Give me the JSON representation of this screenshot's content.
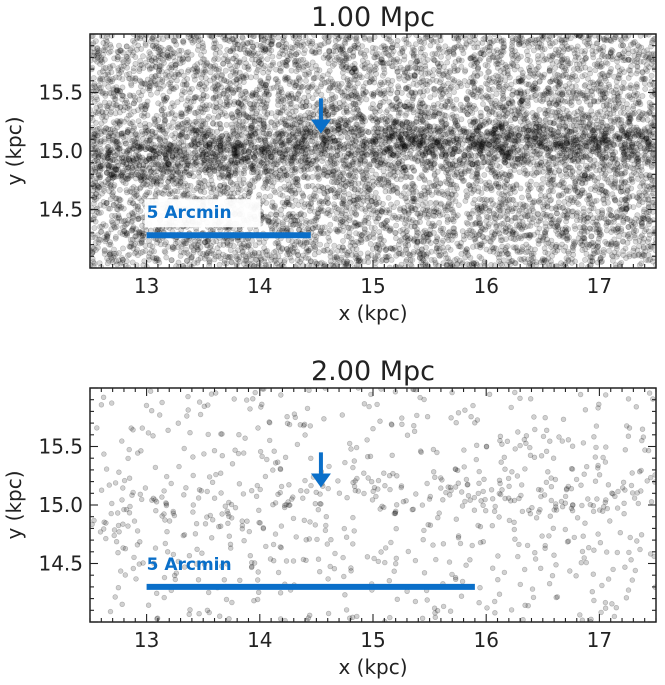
{
  "chart_data": [
    {
      "type": "scatter",
      "title": "1.00 Mpc",
      "xlabel": "x (kpc)",
      "ylabel": "y (kpc)",
      "xlim": [
        12.5,
        17.5
      ],
      "ylim": [
        14.0,
        16.0
      ],
      "xticks": [
        "13",
        "14",
        "15",
        "16",
        "17"
      ],
      "yticks": [
        "14.5",
        "15.0",
        "15.5"
      ],
      "marker_color": "#000000",
      "marker_alpha": 0.15,
      "point_count": 9500,
      "density": "dense",
      "stream": {
        "x": [
          12.5,
          13.5,
          14.5,
          15.5,
          16.5,
          17.5
        ],
        "y": [
          14.85,
          14.98,
          15.05,
          15.08,
          15.07,
          15.02
        ]
      },
      "arrow": {
        "x": 14.54,
        "y_tail": 15.45,
        "y_head": 15.15,
        "color": "#0a6fc9"
      },
      "scale_bar": {
        "label": "5 Arcmin",
        "x_start": 13.0,
        "x_end": 14.45,
        "y": 14.28,
        "color": "#0a6fc9"
      }
    },
    {
      "type": "scatter",
      "title": "2.00 Mpc",
      "xlabel": "x (kpc)",
      "ylabel": "y (kpc)",
      "xlim": [
        12.5,
        17.5
      ],
      "ylim": [
        14.0,
        16.0
      ],
      "xticks": [
        "13",
        "14",
        "15",
        "16",
        "17"
      ],
      "yticks": [
        "14.5",
        "15.0",
        "15.5"
      ],
      "marker_color": "#000000",
      "marker_alpha": 0.18,
      "point_count": 800,
      "density": "sparse",
      "stream": {
        "x": [
          12.5,
          13.5,
          14.5,
          15.5,
          16.5,
          17.5
        ],
        "y": [
          14.85,
          14.98,
          15.05,
          15.08,
          15.07,
          15.02
        ]
      },
      "arrow": {
        "x": 14.54,
        "y_tail": 15.45,
        "y_head": 15.15,
        "color": "#0a6fc9"
      },
      "scale_bar": {
        "label": "5 Arcmin",
        "x_start": 13.0,
        "x_end": 15.9,
        "y": 14.3,
        "color": "#0a6fc9"
      }
    }
  ]
}
